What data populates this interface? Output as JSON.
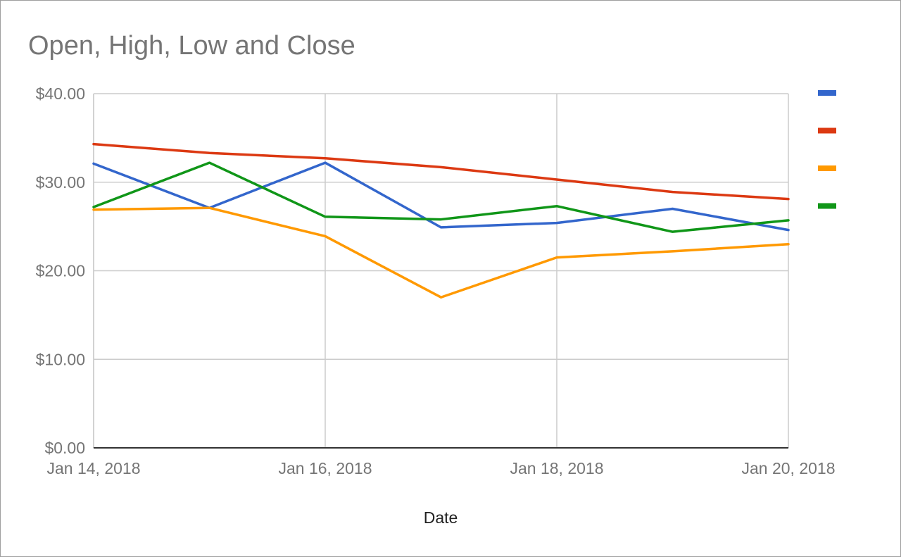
{
  "chart_data": {
    "type": "line",
    "title": "Open, High, Low and Close",
    "xlabel": "Date",
    "ylabel": "",
    "x": [
      "Jan 14, 2018",
      "Jan 15, 2018",
      "Jan 16, 2018",
      "Jan 17, 2018",
      "Jan 18, 2018",
      "Jan 19, 2018",
      "Jan 20, 2018"
    ],
    "x_tick_labels": [
      "Jan 14, 2018",
      "Jan 16, 2018",
      "Jan 18, 2018",
      "Jan 20, 2018"
    ],
    "y_tick_labels": [
      "$0.00",
      "$10.00",
      "$20.00",
      "$30.00",
      "$40.00"
    ],
    "ylim": [
      0,
      40
    ],
    "grid": true,
    "legend_position": "right",
    "series": [
      {
        "color": "#3366cc",
        "values": [
          32.1,
          27.1,
          32.2,
          24.9,
          25.4,
          27.0,
          24.6
        ]
      },
      {
        "color": "#dc3912",
        "values": [
          34.3,
          33.3,
          32.7,
          31.7,
          30.3,
          28.9,
          28.1
        ]
      },
      {
        "color": "#ff9900",
        "values": [
          26.9,
          27.1,
          23.9,
          17.0,
          21.5,
          22.2,
          23.0
        ]
      },
      {
        "color": "#109618",
        "values": [
          27.2,
          32.2,
          26.1,
          25.8,
          27.3,
          24.4,
          25.7
        ]
      }
    ]
  }
}
